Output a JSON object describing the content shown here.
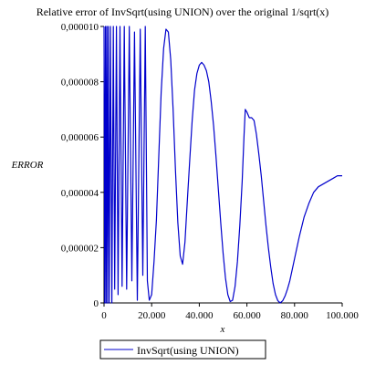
{
  "chart_data": {
    "type": "line",
    "title": "Relative error of InvSqrt(using UNION) over the original 1/sqrt(x)",
    "xlabel": "x",
    "ylabel": "ERROR",
    "xlim": [
      0,
      100000
    ],
    "ylim": [
      0,
      1e-05
    ],
    "x_ticks": [
      0,
      20000,
      40000,
      60000,
      80000,
      100000
    ],
    "x_tick_labels": [
      "0",
      "20.000",
      "40.000",
      "60.000",
      "80.000",
      "100.000"
    ],
    "y_ticks": [
      0,
      2e-06,
      4e-06,
      6e-06,
      8e-06,
      1e-05
    ],
    "y_tick_labels": [
      "0",
      "0,000002",
      "0,000004",
      "0,000006",
      "0,000008",
      "0,000010"
    ],
    "grid": false,
    "legend_position": "bottom",
    "series": [
      {
        "name": "InvSqrt(using UNION)",
        "color": "#0000cc",
        "points": [
          [
            0,
            1e-05
          ],
          [
            300,
            0
          ],
          [
            600,
            1e-05
          ],
          [
            900,
            0
          ],
          [
            1200,
            1e-05
          ],
          [
            1500,
            0
          ],
          [
            1800,
            1e-05
          ],
          [
            2200,
            0
          ],
          [
            2700,
            1e-05
          ],
          [
            3300,
            0
          ],
          [
            3900,
            1e-05
          ],
          [
            4500,
            5e-07
          ],
          [
            5200,
            1e-05
          ],
          [
            5900,
            3e-07
          ],
          [
            6700,
            1e-05
          ],
          [
            7600,
            6e-07
          ],
          [
            8500,
            1e-05
          ],
          [
            9500,
            5e-07
          ],
          [
            10600,
            1e-05
          ],
          [
            11700,
            8e-07
          ],
          [
            12800,
            9.8e-06
          ],
          [
            14000,
            1e-07
          ],
          [
            15200,
            9.9e-06
          ],
          [
            16300,
            1e-06
          ],
          [
            17300,
            1e-05
          ],
          [
            18200,
            8e-07
          ],
          [
            19000,
            1e-07
          ],
          [
            20000,
            3e-07
          ],
          [
            21000,
            1.5e-06
          ],
          [
            22000,
            3e-06
          ],
          [
            23000,
            5.3e-06
          ],
          [
            24000,
            7.6e-06
          ],
          [
            25000,
            9.2e-06
          ],
          [
            26000,
            9.9e-06
          ],
          [
            27000,
            9.8e-06
          ],
          [
            28000,
            8.8e-06
          ],
          [
            29000,
            7e-06
          ],
          [
            30000,
            4.8e-06
          ],
          [
            31000,
            2.9e-06
          ],
          [
            32000,
            1.7e-06
          ],
          [
            33000,
            1.4e-06
          ],
          [
            34000,
            2.2e-06
          ],
          [
            35000,
            3.7e-06
          ],
          [
            36000,
            5.2e-06
          ],
          [
            37000,
            6.6e-06
          ],
          [
            38000,
            7.7e-06
          ],
          [
            39000,
            8.3e-06
          ],
          [
            40000,
            8.6e-06
          ],
          [
            41000,
            8.7e-06
          ],
          [
            42000,
            8.6e-06
          ],
          [
            43000,
            8.4e-06
          ],
          [
            44000,
            8e-06
          ],
          [
            45000,
            7.3e-06
          ],
          [
            46000,
            6.4e-06
          ],
          [
            47000,
            5.3e-06
          ],
          [
            48000,
            4.1e-06
          ],
          [
            49000,
            2.9e-06
          ],
          [
            50000,
            1.8e-06
          ],
          [
            51000,
            9e-07
          ],
          [
            52000,
            3e-07
          ],
          [
            53000,
            5e-08
          ],
          [
            54000,
            1e-07
          ],
          [
            55000,
            6e-07
          ],
          [
            56000,
            1.5e-06
          ],
          [
            57000,
            2.8e-06
          ],
          [
            58000,
            4.4e-06
          ],
          [
            58800,
            6.1e-06
          ],
          [
            59300,
            7e-06
          ],
          [
            60000,
            6.9e-06
          ],
          [
            61000,
            6.7e-06
          ],
          [
            62000,
            6.7e-06
          ],
          [
            63000,
            6.6e-06
          ],
          [
            64000,
            6.1e-06
          ],
          [
            65000,
            5.4e-06
          ],
          [
            66000,
            4.6e-06
          ],
          [
            67000,
            3.7e-06
          ],
          [
            68000,
            2.8e-06
          ],
          [
            69000,
            2e-06
          ],
          [
            70000,
            1.3e-06
          ],
          [
            71000,
            7e-07
          ],
          [
            72000,
            3e-07
          ],
          [
            73000,
            8e-08
          ],
          [
            74000,
            0
          ],
          [
            75000,
            8e-08
          ],
          [
            76000,
            2.5e-07
          ],
          [
            77000,
            5e-07
          ],
          [
            78000,
            8e-07
          ],
          [
            80000,
            1.6e-06
          ],
          [
            82000,
            2.4e-06
          ],
          [
            84000,
            3.1e-06
          ],
          [
            86000,
            3.6e-06
          ],
          [
            88000,
            4e-06
          ],
          [
            90000,
            4.2e-06
          ],
          [
            92000,
            4.3e-06
          ],
          [
            94000,
            4.4e-06
          ],
          [
            96000,
            4.5e-06
          ],
          [
            98000,
            4.6e-06
          ],
          [
            100000,
            4.6e-06
          ]
        ]
      }
    ]
  }
}
